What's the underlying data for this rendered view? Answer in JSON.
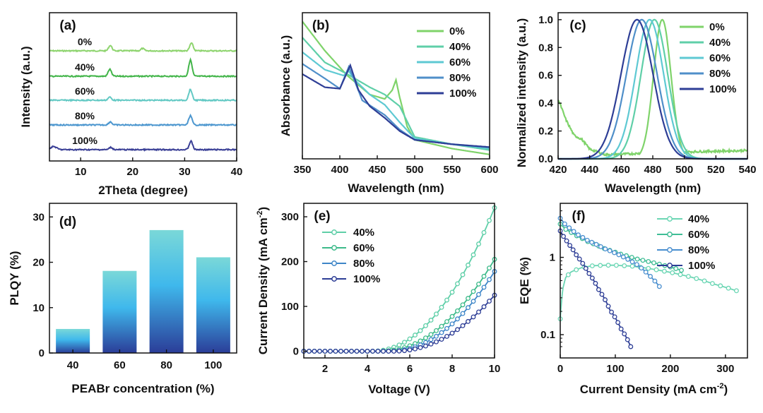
{
  "colors": {
    "c0": "#7fd36a",
    "c40": "#5fcfa8",
    "c60": "#5ec9d3",
    "c80": "#4f8fc9",
    "c100": "#2e3e96",
    "xrd0": "#8ed46e",
    "xrd40": "#43b54a",
    "xrd60": "#63c9c4",
    "xrd80": "#4d97cf",
    "xrd100": "#3a3f96",
    "bar_top": "#7ad8d8",
    "bar_mid": "#3fb8ec",
    "bar_bottom": "#2b3d98"
  },
  "chart_data": [
    {
      "panel": "(a)",
      "type": "line",
      "xlabel": "2Theta (degree)",
      "ylabel": "Intensity (a.u.)",
      "xlim": [
        4,
        40
      ],
      "xticks": [
        10,
        20,
        30,
        40
      ],
      "series": [
        {
          "name": "0%",
          "offset": 4,
          "peaks": [
            [
              15.7,
              0.35
            ],
            [
              21.9,
              0.15
            ],
            [
              31.3,
              0.5
            ]
          ]
        },
        {
          "name": "40%",
          "offset": 3,
          "peaks": [
            [
              15.6,
              0.45
            ],
            [
              31.1,
              1.05
            ]
          ]
        },
        {
          "name": "60%",
          "offset": 2,
          "peaks": [
            [
              15.6,
              0.2
            ],
            [
              31.1,
              0.7
            ]
          ]
        },
        {
          "name": "80%",
          "offset": 1,
          "peaks": [
            [
              15.7,
              0.2
            ],
            [
              31.1,
              0.6
            ]
          ]
        },
        {
          "name": "100%",
          "offset": 0,
          "peaks": [
            [
              4.8,
              0.2
            ],
            [
              15.8,
              0.15
            ],
            [
              31.2,
              0.55
            ]
          ]
        }
      ]
    },
    {
      "panel": "(b)",
      "type": "line",
      "xlabel": "Wavelength (nm)",
      "ylabel": "Absorbance (a.u.)",
      "xlim": [
        350,
        600
      ],
      "ylim": [
        0,
        1
      ],
      "xticks": [
        350,
        400,
        450,
        500,
        550,
        600
      ],
      "series": [
        {
          "name": "0%",
          "x": [
            350,
            380,
            410,
            440,
            460,
            470,
            475,
            480,
            490,
            500,
            550,
            600
          ],
          "y": [
            0.94,
            0.74,
            0.57,
            0.44,
            0.41,
            0.47,
            0.54,
            0.42,
            0.22,
            0.13,
            0.07,
            0.03
          ]
        },
        {
          "name": "40%",
          "x": [
            350,
            380,
            410,
            440,
            460,
            480,
            500,
            550,
            600
          ],
          "y": [
            0.83,
            0.66,
            0.58,
            0.49,
            0.44,
            0.36,
            0.15,
            0.1,
            0.06
          ]
        },
        {
          "name": "60%",
          "x": [
            350,
            380,
            405,
            412,
            420,
            440,
            460,
            480,
            500,
            550,
            600
          ],
          "y": [
            0.73,
            0.61,
            0.57,
            0.6,
            0.54,
            0.44,
            0.37,
            0.25,
            0.14,
            0.1,
            0.07
          ]
        },
        {
          "name": "80%",
          "x": [
            350,
            380,
            400,
            412,
            420,
            430,
            460,
            480,
            500,
            550,
            600
          ],
          "y": [
            0.65,
            0.55,
            0.48,
            0.63,
            0.53,
            0.4,
            0.3,
            0.2,
            0.13,
            0.1,
            0.08
          ]
        },
        {
          "name": "100%",
          "x": [
            350,
            380,
            400,
            414,
            425,
            440,
            460,
            480,
            500,
            550,
            600
          ],
          "y": [
            0.58,
            0.49,
            0.48,
            0.64,
            0.47,
            0.36,
            0.28,
            0.19,
            0.13,
            0.1,
            0.08
          ]
        }
      ]
    },
    {
      "panel": "(c)",
      "type": "line",
      "xlabel": "Wavelength (nm)",
      "ylabel": "Normalized intensity (a.u.)",
      "xlim": [
        420,
        540
      ],
      "ylim": [
        0,
        1.05
      ],
      "xticks": [
        420,
        440,
        460,
        480,
        500,
        520,
        540
      ],
      "yticks": [
        0.0,
        0.2,
        0.4,
        0.6,
        0.8,
        1.0
      ],
      "series": [
        {
          "name": "0%",
          "peak": 486,
          "fwhm": 13,
          "baseline": [
            [
              420,
              0.43
            ],
            [
              425,
              0.28
            ],
            [
              430,
              0.17
            ],
            [
              435,
              0.14
            ],
            [
              440,
              0.07
            ],
            [
              450,
              0.03
            ],
            [
              500,
              0.05
            ],
            [
              540,
              0.06
            ]
          ]
        },
        {
          "name": "40%",
          "peak": 481,
          "fwhm": 20
        },
        {
          "name": "60%",
          "peak": 478,
          "fwhm": 21
        },
        {
          "name": "80%",
          "peak": 473,
          "fwhm": 23
        },
        {
          "name": "100%",
          "peak": 470,
          "fwhm": 24
        }
      ]
    },
    {
      "panel": "(d)",
      "type": "bar",
      "xlabel": "PEABr concentration (%)",
      "ylabel": "PLQY (%)",
      "categories": [
        "40",
        "60",
        "80",
        "100"
      ],
      "values": [
        5.3,
        18.1,
        27.1,
        21.1
      ],
      "ylim": [
        0,
        33
      ],
      "yticks": [
        0,
        10,
        20,
        30
      ]
    },
    {
      "panel": "(e)",
      "type": "line",
      "xlabel": "Voltage (V)",
      "ylabel": "Current Density (mA cm",
      "ylabel_sup": "-2",
      "ylabel_end": ")",
      "xlim": [
        1,
        10
      ],
      "ylim": [
        -15,
        330
      ],
      "xticks": [
        2,
        4,
        6,
        8,
        10
      ],
      "yticks": [
        0,
        100,
        200,
        300
      ],
      "series": [
        {
          "name": "40%",
          "onset": 4.2,
          "end": 320
        },
        {
          "name": "60%",
          "onset": 4.6,
          "end": 205
        },
        {
          "name": "80%",
          "onset": 5.0,
          "end": 178
        },
        {
          "name": "100%",
          "onset": 5.2,
          "end": 125
        }
      ]
    },
    {
      "panel": "(f)",
      "type": "line",
      "xlabel": "Current Density (mA  cm",
      "xlabel_sup": "-2",
      "xlabel_end": ")",
      "ylabel": "EQE (%)",
      "xlim": [
        0,
        340
      ],
      "ylim": [
        0.05,
        5
      ],
      "yscale": "log",
      "xticks": [
        0,
        100,
        200,
        300
      ],
      "yticks": [
        0.1,
        1
      ],
      "series": [
        {
          "name": "40%",
          "x": [
            0,
            2,
            5,
            10,
            20,
            40,
            60,
            80,
            100,
            130,
            160,
            200,
            240,
            280,
            320
          ],
          "y": [
            0.16,
            0.25,
            0.4,
            0.55,
            0.65,
            0.74,
            0.78,
            0.79,
            0.79,
            0.77,
            0.72,
            0.64,
            0.55,
            0.45,
            0.37
          ]
        },
        {
          "name": "60%",
          "x": [
            0,
            10,
            30,
            50,
            80,
            110,
            140,
            170,
            200,
            220
          ],
          "y": [
            2.7,
            2.3,
            1.9,
            1.6,
            1.3,
            1.1,
            0.95,
            0.85,
            0.75,
            0.68
          ]
        },
        {
          "name": "80%",
          "x": [
            0,
            10,
            30,
            50,
            80,
            110,
            140,
            160,
            180
          ],
          "y": [
            3.2,
            2.6,
            2.0,
            1.65,
            1.3,
            1.05,
            0.8,
            0.6,
            0.42
          ]
        },
        {
          "name": "100%",
          "x": [
            0,
            5,
            15,
            30,
            50,
            70,
            90,
            110,
            128
          ],
          "y": [
            2.2,
            1.9,
            1.5,
            1.05,
            0.65,
            0.38,
            0.21,
            0.12,
            0.07
          ]
        }
      ]
    }
  ]
}
